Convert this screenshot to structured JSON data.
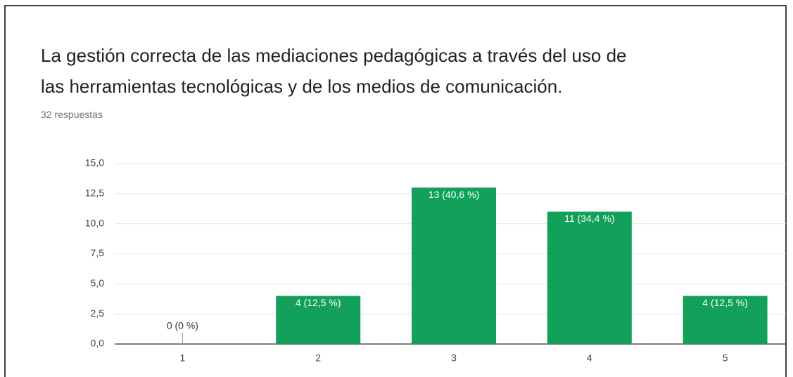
{
  "chart_data": {
    "type": "bar",
    "title": [
      "La gestión correcta de las mediaciones pedagógicas a través del uso de",
      "las herramientas tecnológicas y de los medios de comunicación."
    ],
    "subtitle": "32 respuestas",
    "categories": [
      "1",
      "2",
      "3",
      "4",
      "5"
    ],
    "values": [
      0,
      4,
      13,
      11,
      4
    ],
    "value_labels": [
      "0 (0 %)",
      "4 (12,5 %)",
      "13 (40,6 %)",
      "11 (34,4 %)",
      "4 (12,5 %)"
    ],
    "color": "#12a05b",
    "ylim": [
      0,
      15
    ],
    "yticks": [
      {
        "value": 0,
        "label": "0,0"
      },
      {
        "value": 2.5,
        "label": "2,5"
      },
      {
        "value": 5,
        "label": "5,0"
      },
      {
        "value": 7.5,
        "label": "7,5"
      },
      {
        "value": 10,
        "label": "10,0"
      },
      {
        "value": 12.5,
        "label": "12,5"
      },
      {
        "value": 15,
        "label": "15,0"
      }
    ],
    "grid": true
  }
}
